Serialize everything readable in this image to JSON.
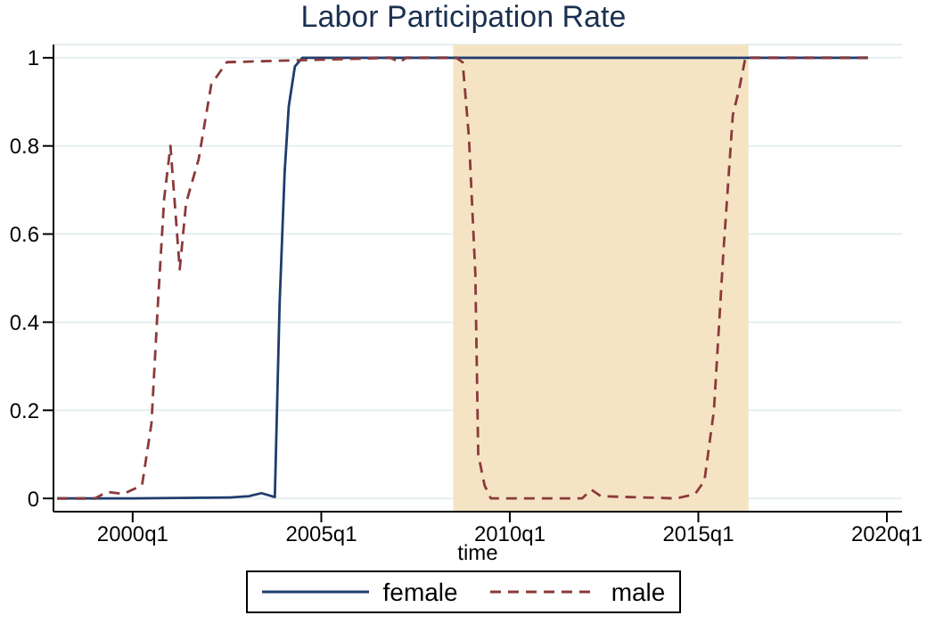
{
  "chart_data": {
    "type": "line",
    "title": "Labor Participation Rate",
    "xlabel": "time",
    "xlim": [
      "1997-11-25",
      "2020-05-27"
    ],
    "xticks": [
      {
        "value": "2000-01-01",
        "label": "2000q1"
      },
      {
        "value": "2005-01-01",
        "label": "2005q1"
      },
      {
        "value": "2010-01-01",
        "label": "2010q1"
      },
      {
        "value": "2015-01-01",
        "label": "2015q1"
      },
      {
        "value": "2020-01-01",
        "label": "2020q1"
      }
    ],
    "ylim": [
      -0.03,
      1.03
    ],
    "yticks": [
      0,
      0.2,
      0.4,
      0.6,
      0.8,
      1
    ],
    "grid": "y",
    "legend": "bottom",
    "marker": "none",
    "bands": [
      {
        "axis": "x",
        "from": "2008-07-01",
        "to": "2016-05-01",
        "color": "#f5e4c4"
      }
    ],
    "series": [
      {
        "name": "female",
        "color": "#1f3d6e",
        "line_style": "solid",
        "x": [
          "1998-01",
          "2000-01",
          "2002-08",
          "2003-02",
          "2003-06",
          "2003-10-09",
          "2003-11-24",
          "2004-01-12",
          "2004-02-21",
          "2004-04-20",
          "2004-07",
          "2010-01",
          "2019-07"
        ],
        "values": [
          0,
          0,
          0.002,
          0.005,
          0.012,
          0.003,
          0.44,
          0.74,
          0.89,
          0.98,
          1,
          1,
          1
        ]
      },
      {
        "name": "male",
        "color": "#8b3a3a",
        "line_style": "dashed",
        "x": [
          "1998-01",
          "1999-01",
          "1999-05",
          "1999-10",
          "2000-04",
          "2000-07",
          "2000-09",
          "2000-11",
          "2001-01",
          "2001-04",
          "2001-06",
          "2001-10",
          "2002-02",
          "2002-07",
          "2006-11",
          "2007-02",
          "2007-04",
          "2008-08",
          "2008-10",
          "2008-12",
          "2009-02",
          "2009-03",
          "2009-05",
          "2009-07",
          "2011-12",
          "2012-03",
          "2012-06",
          "2014-06",
          "2014-12",
          "2015-03",
          "2015-06",
          "2015-09",
          "2015-12",
          "2016-02",
          "2016-04",
          "2019-07"
        ],
        "values": [
          0,
          0,
          0.015,
          0.01,
          0.03,
          0.17,
          0.44,
          0.68,
          0.8,
          0.52,
          0.67,
          0.77,
          0.94,
          0.99,
          1,
          0.99,
          1,
          1,
          0.99,
          0.82,
          0.51,
          0.1,
          0.03,
          0,
          0,
          0.02,
          0.005,
          0,
          0.01,
          0.04,
          0.2,
          0.56,
          0.87,
          0.93,
          1,
          1
        ]
      }
    ]
  }
}
